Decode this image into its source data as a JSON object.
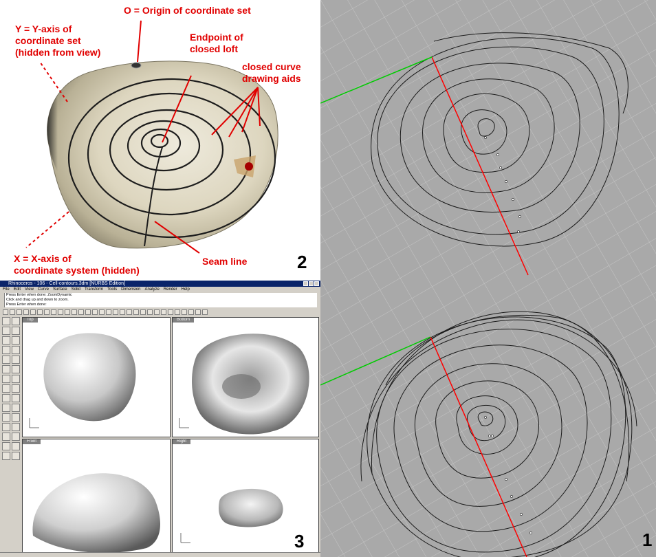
{
  "photo_panel": {
    "number": "2",
    "annotations": {
      "origin": "O = Origin of coordinate set",
      "yaxis": [
        "Y = Y-axis of",
        "coordinate set",
        "(hidden from view)"
      ],
      "endpoint": [
        "Endpoint of",
        "closed loft"
      ],
      "curves": [
        "closed curve",
        "drawing aids"
      ],
      "xaxis": [
        "X = X-axis of",
        "coordinate system (hidden)"
      ],
      "seam": "Seam line"
    }
  },
  "curves_panel": {
    "number": "1"
  },
  "rhino_panel": {
    "number": "3",
    "window_title": "Rhinoceros - 106 - Cell-contours.3dm [NURBS Edition]",
    "menu": [
      "File",
      "Edit",
      "View",
      "Curve",
      "Surface",
      "Solid",
      "Transform",
      "Tools",
      "Dimension",
      "Analyze",
      "Render",
      "Help"
    ],
    "command_lines": [
      "Press Enter when done: ZoomDynamic",
      "Click and drag up and down to zoom.",
      "Press Enter when done:"
    ],
    "viewports": [
      "Top",
      "Bottom",
      "Front",
      "Right"
    ]
  },
  "colors": {
    "annotation": "#e10000",
    "axis_red": "#ff0000",
    "axis_green": "#00cc00",
    "grid_bg": "#a9a9a9"
  },
  "icons": [
    "toolbar-icon",
    "tool-palette-icon",
    "axis-gizmo-icon"
  ]
}
